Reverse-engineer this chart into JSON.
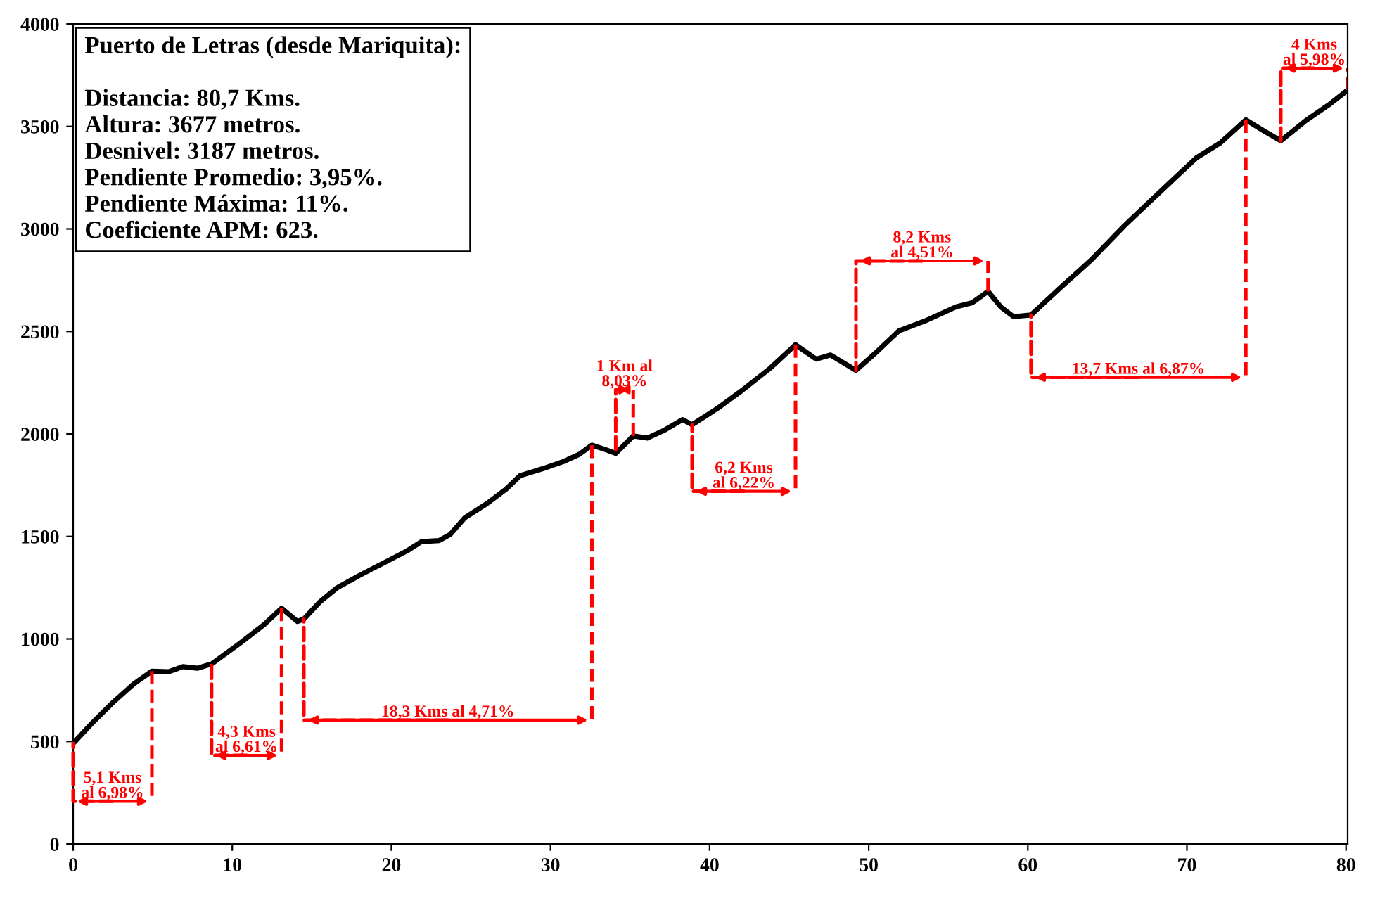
{
  "chart_data": {
    "type": "line",
    "title": "Puerto de Letras (desde Mariquita):",
    "x": [
      0,
      1.2,
      2.5,
      3.8,
      4.95,
      6,
      6.9,
      7.8,
      8.7,
      10.5,
      12,
      13.1,
      14.1,
      14.5,
      15.5,
      16.6,
      18,
      19.5,
      21,
      21.9,
      23,
      23.7,
      24.6,
      26,
      27.2,
      28.1,
      29.5,
      30.8,
      31.8,
      32.6,
      33.4,
      34.1,
      35.2,
      36.1,
      37.2,
      38.3,
      38.9,
      40.5,
      42,
      43.8,
      45.4,
      46.7,
      47.6,
      49.2,
      50.5,
      51.9,
      53.5,
      55.5,
      56.5,
      57.5,
      58.3,
      59.1,
      60.2,
      62,
      64,
      66.1,
      68.3,
      70.6,
      72.1,
      73.7,
      74.8,
      75.9,
      77.5,
      79,
      80.1
    ],
    "series": [
      {
        "color": "#000000",
        "values": [
          490,
          590,
          690,
          780,
          843,
          840,
          865,
          857,
          878,
          980,
          1070,
          1150,
          1085,
          1097,
          1180,
          1250,
          1310,
          1370,
          1430,
          1475,
          1480,
          1510,
          1590,
          1660,
          1730,
          1797,
          1830,
          1865,
          1900,
          1945,
          1925,
          1905,
          1990,
          1980,
          2020,
          2070,
          2045,
          2125,
          2210,
          2320,
          2435,
          2365,
          2385,
          2310,
          2400,
          2503,
          2550,
          2620,
          2640,
          2695,
          2620,
          2572,
          2580,
          2710,
          2850,
          3018,
          3180,
          3347,
          3420,
          3532,
          3480,
          3430,
          3530,
          3610,
          3677
        ]
      }
    ],
    "xlim": [
      0,
      80.1
    ],
    "ylim": [
      0,
      4000
    ],
    "xticks": [
      0,
      10,
      20,
      30,
      40,
      50,
      60,
      70,
      80
    ],
    "yticks": [
      0,
      500,
      1000,
      1500,
      2000,
      2500,
      3000,
      3500,
      4000
    ],
    "grid": false,
    "marker": "none",
    "line_style": "solid",
    "annotations": [
      {
        "text": "5,1 Kms\nal 6,98%",
        "x": 0,
        "y": 490
      },
      {
        "text": "4,3 Kms\nal 6,61%",
        "x": 8.7,
        "y": 878
      },
      {
        "text": "18,3 Kms al 4,71%",
        "x": 14.5,
        "y": 1097
      },
      {
        "text": "1 Km al\n8,03%",
        "x": 34.1,
        "y": 1905
      },
      {
        "text": "6,2 Kms\nal 6,22%",
        "x": 38.9,
        "y": 2045
      },
      {
        "text": "8,2 Kms\nal 4,51%",
        "x": 49.2,
        "y": 2310
      },
      {
        "text": "13,7 Kms al 6,87%",
        "x": 60.2,
        "y": 2580
      },
      {
        "text": "4 Kms\nal 5,98%",
        "x": 75.9,
        "y": 3430
      },
      "Distancia: 80,7 Kms.",
      "Altura: 3677 metros.",
      "Desnivel: 3187 metros.",
      "Pendiente Promedio: 3,95%.",
      "Pendiente Máxima: 11%.",
      "Coeficiente APM: 623."
    ]
  }
}
